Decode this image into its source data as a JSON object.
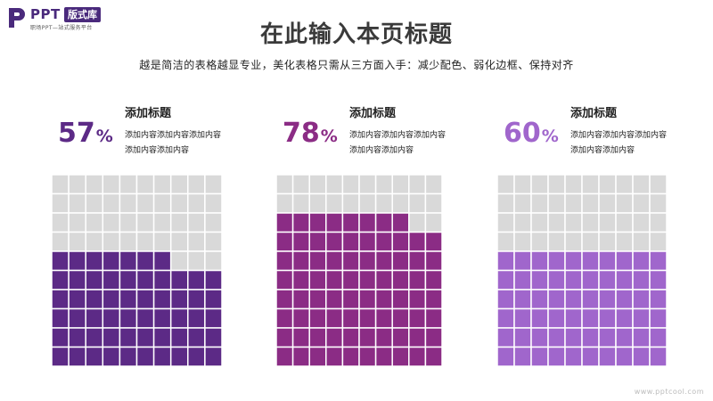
{
  "logo": {
    "ppt": "PPT",
    "badge": "版式库",
    "sub": "职场PPT—站式服务平台"
  },
  "title": "在此输入本页标题",
  "subtitle": "越是简洁的表格越显专业，美化表格只需从三方面入手：减少配色、弱化边框、保持对齐",
  "footer": "www.pptcool.com",
  "colors": {
    "empty": "#d9d9d9",
    "panel1": "#5c2a86",
    "panel2": "#8b2c85",
    "panel3": "#a066cc"
  },
  "chart_data": [
    {
      "type": "waffle",
      "heading": "添加标题",
      "value": 57,
      "label_number": "57",
      "label_symbol": "%",
      "description": "添加内容添加内容添加内容添加内容添加内容",
      "color": "#5c2a86"
    },
    {
      "type": "waffle",
      "heading": "添加标题",
      "value": 78,
      "label_number": "78",
      "label_symbol": "%",
      "description": "添加内容添加内容添加内容添加内容添加内容",
      "color": "#8b2c85"
    },
    {
      "type": "waffle",
      "heading": "添加标题",
      "value": 60,
      "label_number": "60",
      "label_symbol": "%",
      "description": "添加内容添加内容添加内容添加内容添加内容",
      "color": "#a066cc"
    }
  ]
}
